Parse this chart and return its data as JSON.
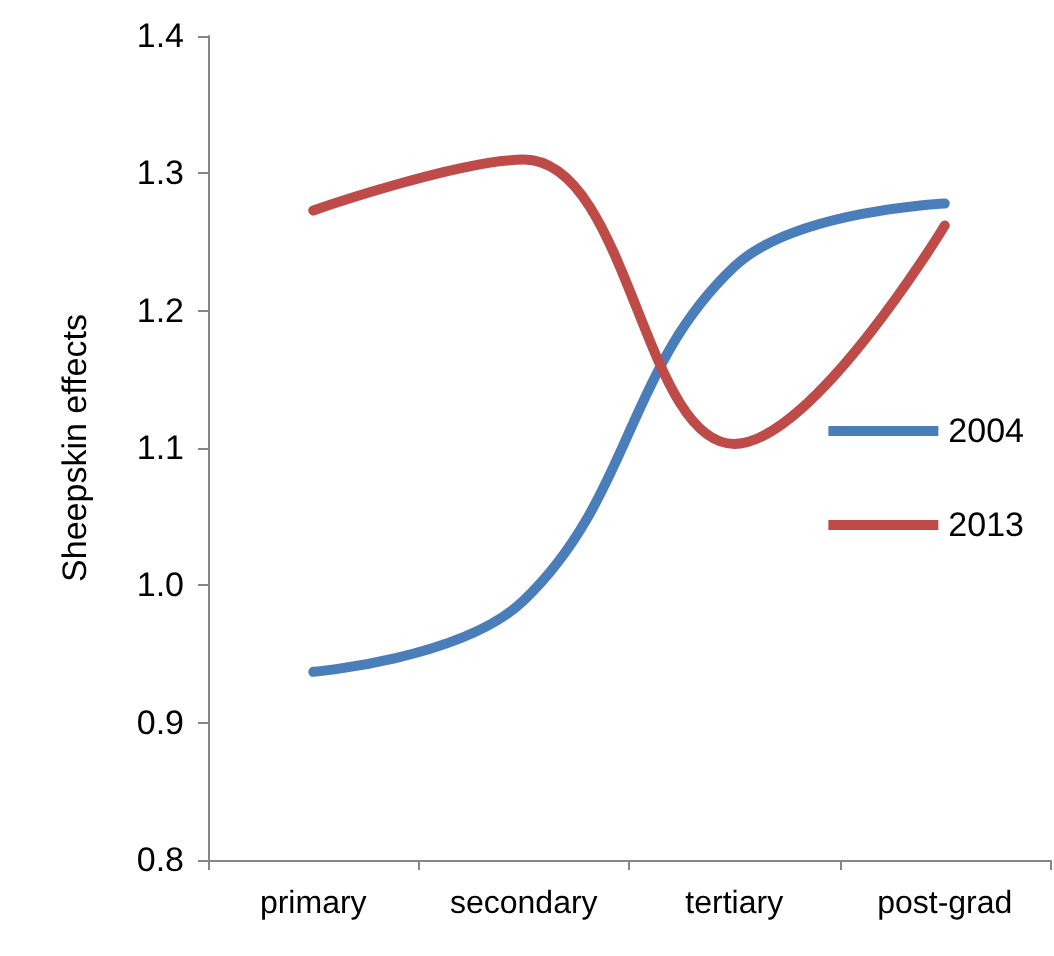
{
  "chart_data": {
    "type": "line",
    "ylabel": "Sheepskin effects",
    "categories": [
      "primary",
      "secondary",
      "tertiary",
      "post-grad"
    ],
    "series": [
      {
        "name": "2004",
        "color": "#4a7ebb",
        "values": [
          0.937,
          0.989,
          1.232,
          1.278
        ]
      },
      {
        "name": "2013",
        "color": "#be4b48",
        "values": [
          1.273,
          1.31,
          1.103,
          1.262
        ]
      }
    ],
    "ylim": [
      0.8,
      1.4
    ],
    "yticks": [
      0.8,
      0.9,
      {
        "value": 1,
        "label": "1.0"
      },
      1.1,
      1.2,
      1.3,
      1.4
    ],
    "grid": false,
    "legend": "right",
    "marker": "none",
    "line_style": "solid"
  }
}
